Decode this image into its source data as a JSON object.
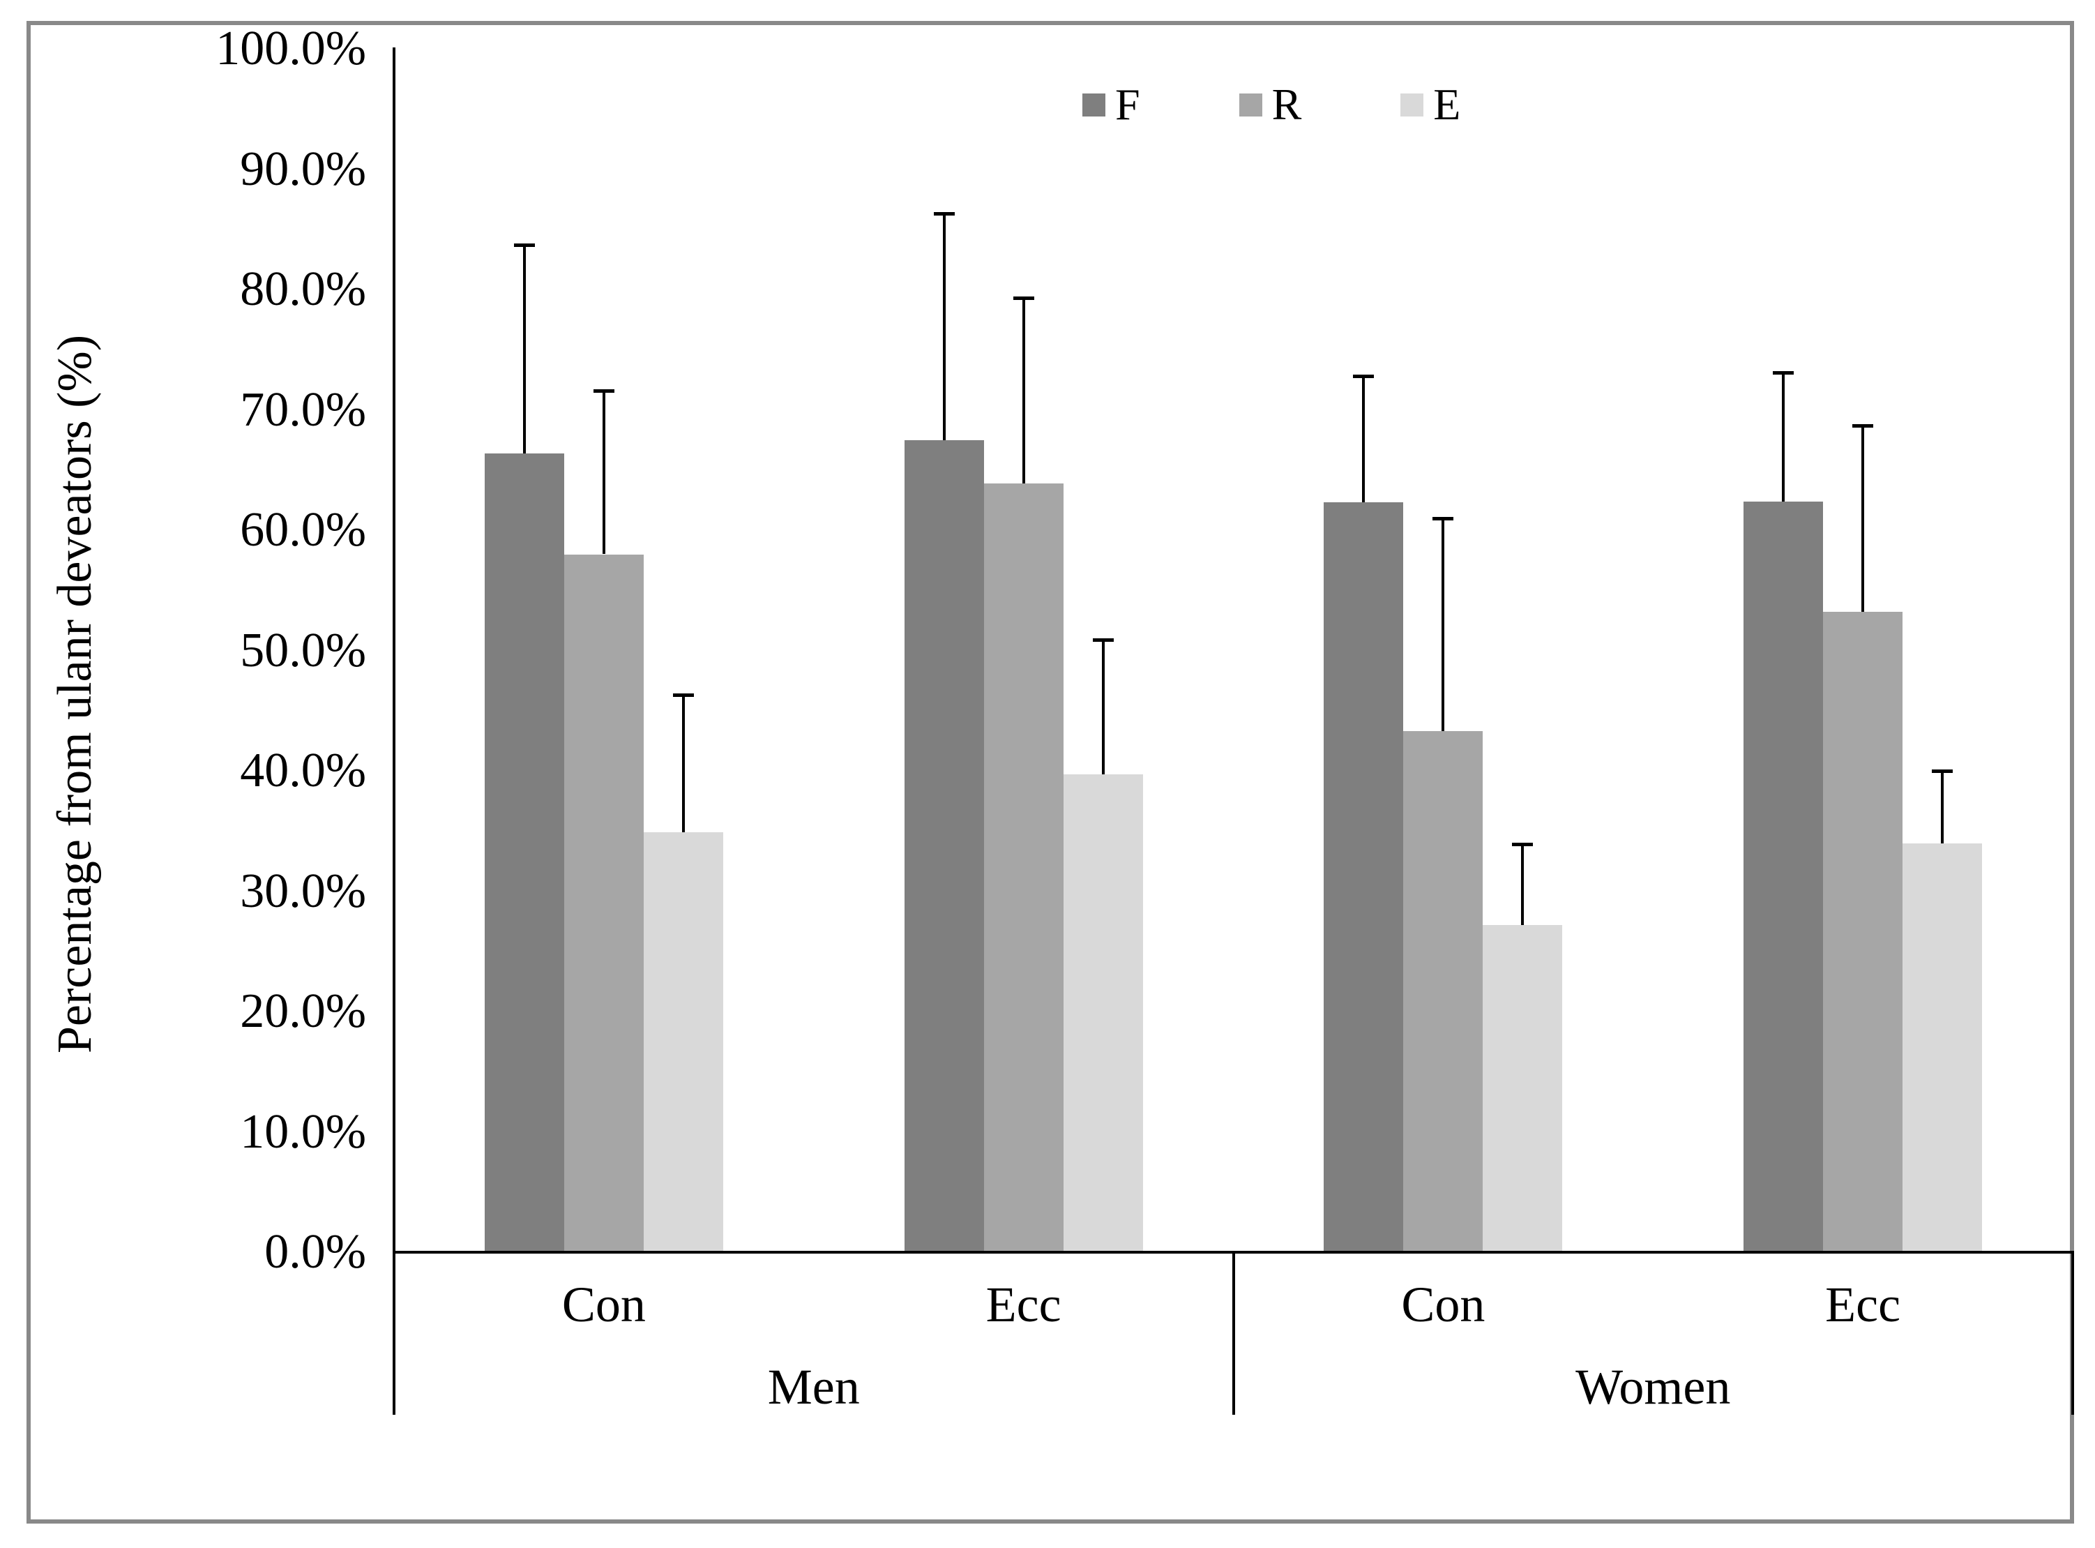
{
  "chart_data": {
    "type": "bar",
    "title": "",
    "ylabel": "Percentage from ulanr deveators (%)",
    "xlabel": "",
    "ylim": [
      0,
      100
    ],
    "ytick_step": 10,
    "ytick_labels": [
      "0.0%",
      "10.0%",
      "20.0%",
      "30.0%",
      "40.0%",
      "50.0%",
      "60.0%",
      "70.0%",
      "80.0%",
      "90.0%",
      "100.0%"
    ],
    "grid": false,
    "legend_position": "top-center",
    "error_bars": "upper-only",
    "categories": [
      "Con",
      "Ecc",
      "Con",
      "Ecc"
    ],
    "category_groups": [
      {
        "label": "Men",
        "span": [
          0,
          1
        ]
      },
      {
        "label": "Women",
        "span": [
          2,
          3
        ]
      }
    ],
    "series": [
      {
        "name": "F",
        "color": "#7f7f7f",
        "values": [
          66.4,
          67.5,
          62.3,
          62.4
        ],
        "errors_plus": [
          17.3,
          18.8,
          10.5,
          10.7
        ]
      },
      {
        "name": "R",
        "color": "#a6a6a6",
        "values": [
          58.0,
          63.9,
          43.3,
          53.2
        ],
        "errors_plus": [
          13.6,
          15.4,
          17.7,
          15.5
        ]
      },
      {
        "name": "E",
        "color": "#d9d9d9",
        "values": [
          34.9,
          39.7,
          27.2,
          34.0
        ],
        "errors_plus": [
          11.4,
          11.2,
          6.7,
          6.0
        ]
      }
    ],
    "colors": {
      "axis": "#000000",
      "frame": "#898989",
      "background": "#ffffff"
    }
  }
}
